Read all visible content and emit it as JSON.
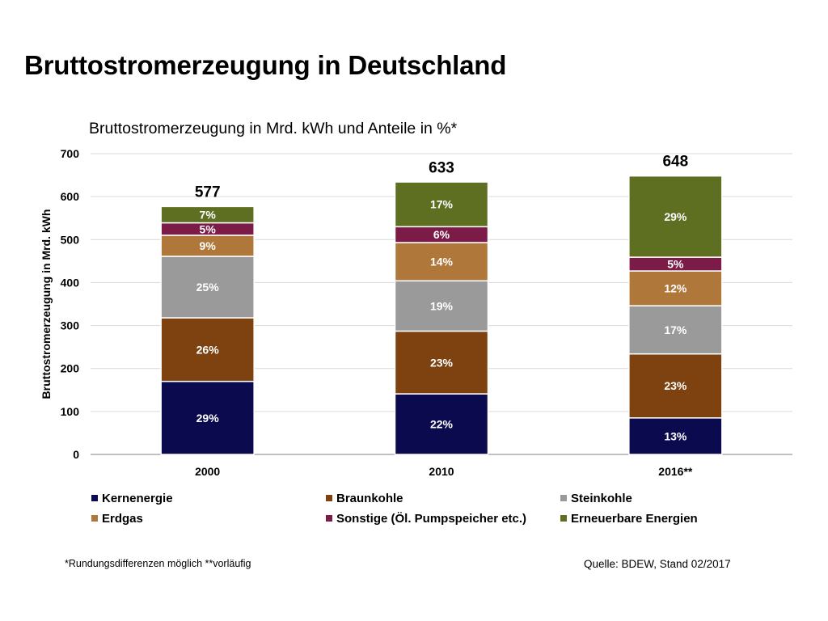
{
  "title": "Bruttostromerzeugung in Deutschland",
  "subtitle": "Bruttostromerzeugung in Mrd. kWh und Anteile in %*",
  "footnote": "*Rundungsdifferenzen möglich    **vorläufig",
  "source": "Quelle: BDEW, Stand 02/2017",
  "chart_data": {
    "type": "bar",
    "stacked": true,
    "title": "Bruttostromerzeugung in Mrd. kWh und Anteile in %*",
    "ylabel": "Bruttostromerzeugung in Mrd. kWh",
    "xlabel": "",
    "ylim": [
      0,
      700
    ],
    "yticks": [
      0,
      100,
      200,
      300,
      400,
      500,
      600,
      700
    ],
    "grid": true,
    "legend_position": "bottom",
    "categories": [
      "2000",
      "2010",
      "2016**"
    ],
    "totals": [
      577,
      633,
      648
    ],
    "total_labels": [
      "577",
      "633",
      "648"
    ],
    "series": [
      {
        "name": "Kernenergie",
        "color": "#0b0a4e",
        "values": [
          170,
          141,
          85
        ],
        "labels": [
          "29%",
          "22%",
          "13%"
        ]
      },
      {
        "name": "Braunkohle",
        "color": "#7d4210",
        "values": [
          148,
          146,
          149
        ],
        "labels": [
          "26%",
          "23%",
          "23%"
        ]
      },
      {
        "name": "Steinkohle",
        "color": "#9a9a9a",
        "values": [
          143,
          117,
          112
        ],
        "labels": [
          "25%",
          "19%",
          "17%"
        ]
      },
      {
        "name": "Erdgas",
        "color": "#b0773a",
        "values": [
          49,
          89,
          81
        ],
        "labels": [
          "9%",
          "14%",
          "12%"
        ]
      },
      {
        "name": "Sonstige (Öl. Pumpspeicher etc.)",
        "color": "#7c1a48",
        "values": [
          29,
          37,
          32
        ],
        "labels": [
          "5%",
          "6%",
          "5%"
        ]
      },
      {
        "name": "Erneuerbare Energien",
        "color": "#5f6f22",
        "values": [
          38,
          104,
          189
        ],
        "labels": [
          "7%",
          "17%",
          "29%"
        ]
      }
    ]
  }
}
